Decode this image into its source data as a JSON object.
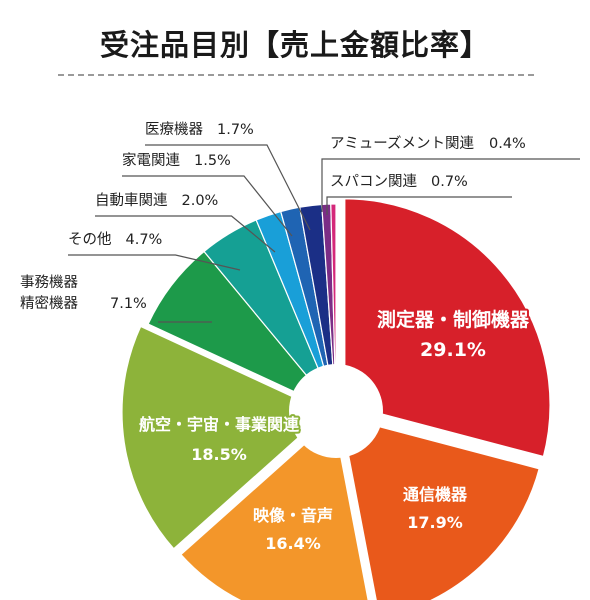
{
  "chart_data": {
    "type": "pie",
    "title": "受注品目別【売上金額比率】",
    "slices": [
      {
        "label": "測定器・制御機器",
        "value": 29.1,
        "value_text": "29.1%",
        "color": "#d7202a"
      },
      {
        "label": "通信機器",
        "value": 17.9,
        "value_text": "17.9%",
        "color": "#e9591b"
      },
      {
        "label": "映像・音声",
        "value": 16.4,
        "value_text": "16.4%",
        "color": "#f3962a"
      },
      {
        "label": "航空・宇宙・事業関連",
        "value": 18.5,
        "value_text": "18.5%",
        "color": "#8db33a"
      },
      {
        "label": "事務機器 精密機器",
        "label_lines": [
          "事務機器",
          "精密機器"
        ],
        "value": 7.1,
        "value_text": "7.1%",
        "color": "#1d9a4a"
      },
      {
        "label": "その他",
        "value": 4.7,
        "value_text": "4.7%",
        "color": "#15a094"
      },
      {
        "label": "自動車関連",
        "value": 2.0,
        "value_text": "2.0%",
        "color": "#199fd8"
      },
      {
        "label": "家電関連",
        "value": 1.5,
        "value_text": "1.5%",
        "color": "#1f64b3"
      },
      {
        "label": "医療機器",
        "value": 1.7,
        "value_text": "1.7%",
        "color": "#1b2f86"
      },
      {
        "label": "スパコン関連",
        "value": 0.7,
        "value_text": "0.7%",
        "color": "#7b2d86"
      },
      {
        "label": "アミューズメント関連",
        "value": 0.4,
        "value_text": "0.4%",
        "color": "#d4287a"
      }
    ]
  }
}
